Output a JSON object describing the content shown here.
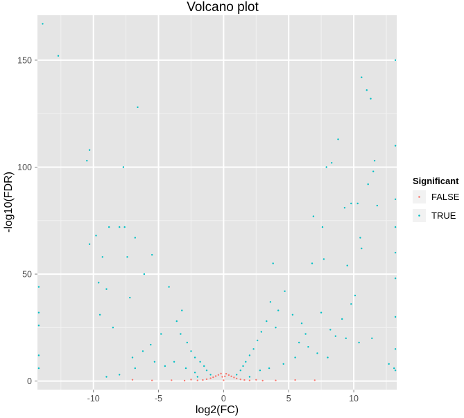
{
  "chart_data": {
    "type": "scatter",
    "title": "Volcano plot",
    "xlabel": "log2(FC)",
    "ylabel": "-log10(FDR)",
    "xlim": [
      -14.3,
      13.3
    ],
    "ylim": [
      -4,
      171
    ],
    "x_ticks": [
      -10,
      -5,
      0,
      5,
      10
    ],
    "y_ticks": [
      0,
      50,
      100,
      150
    ],
    "grid": true,
    "legend": {
      "title": "Significant",
      "placement": "right",
      "entries": [
        {
          "label": "FALSE",
          "color": "#f8766d"
        },
        {
          "label": "TRUE",
          "color": "#00bfc4"
        }
      ]
    },
    "series": [
      {
        "name": "FALSE",
        "color": "#f8766d",
        "points": [
          [
            -2.0,
            0.3
          ],
          [
            -1.6,
            0.5
          ],
          [
            -1.3,
            0.9
          ],
          [
            -1.0,
            1.3
          ],
          [
            -0.8,
            1.8
          ],
          [
            -0.6,
            2.3
          ],
          [
            -0.4,
            2.9
          ],
          [
            -0.2,
            3.5
          ],
          [
            -0.1,
            2.0
          ],
          [
            0.0,
            0.4
          ],
          [
            0.1,
            2.2
          ],
          [
            0.2,
            3.4
          ],
          [
            0.4,
            2.8
          ],
          [
            0.6,
            2.2
          ],
          [
            0.8,
            1.7
          ],
          [
            1.0,
            1.2
          ],
          [
            1.3,
            0.8
          ],
          [
            1.6,
            0.5
          ],
          [
            2.0,
            0.3
          ],
          [
            -3.0,
            0.2
          ],
          [
            -4.0,
            0.4
          ],
          [
            -5.5,
            0.3
          ],
          [
            -7.0,
            0.6
          ],
          [
            3.0,
            0.2
          ],
          [
            4.0,
            0.3
          ],
          [
            5.5,
            0.5
          ],
          [
            7.0,
            0.4
          ],
          [
            2.5,
            0.6
          ],
          [
            -2.5,
            0.7
          ]
        ]
      },
      {
        "name": "TRUE",
        "color": "#00bfc4",
        "points": [
          [
            -13.9,
            167
          ],
          [
            -12.7,
            152
          ],
          [
            -10.3,
            108
          ],
          [
            -10.5,
            103
          ],
          [
            -6.6,
            128
          ],
          [
            -7.7,
            100
          ],
          [
            -8.8,
            72
          ],
          [
            -8.0,
            72
          ],
          [
            -7.6,
            72
          ],
          [
            -10.3,
            64
          ],
          [
            -9.8,
            68
          ],
          [
            -6.8,
            67
          ],
          [
            -5.5,
            59
          ],
          [
            -7.4,
            58
          ],
          [
            -9.3,
            58
          ],
          [
            -6.1,
            50
          ],
          [
            -9.6,
            46
          ],
          [
            -9.0,
            43
          ],
          [
            -7.2,
            39
          ],
          [
            -4.2,
            44
          ],
          [
            -3.2,
            33
          ],
          [
            -3.3,
            22
          ],
          [
            -2.8,
            18
          ],
          [
            -2.5,
            14
          ],
          [
            -2.2,
            11
          ],
          [
            -1.8,
            9
          ],
          [
            -1.5,
            7
          ],
          [
            -1.3,
            5
          ],
          [
            -3.6,
            28
          ],
          [
            -4.8,
            22
          ],
          [
            -5.6,
            17
          ],
          [
            -6.2,
            14
          ],
          [
            -7.0,
            11
          ],
          [
            -8.5,
            25
          ],
          [
            -9.5,
            31
          ],
          [
            -2.9,
            6
          ],
          [
            -2.2,
            4
          ],
          [
            -3.8,
            9
          ],
          [
            -4.5,
            7
          ],
          [
            -5.3,
            9
          ],
          [
            -6.8,
            6
          ],
          [
            -8.0,
            3
          ],
          [
            -9.0,
            2
          ],
          [
            -14.2,
            44
          ],
          [
            -14.2,
            26
          ],
          [
            -14.2,
            12
          ],
          [
            -14.2,
            6
          ],
          [
            -14.2,
            32
          ],
          [
            10.6,
            142
          ],
          [
            11.0,
            136
          ],
          [
            11.3,
            132
          ],
          [
            8.8,
            113
          ],
          [
            8.3,
            102
          ],
          [
            7.9,
            100
          ],
          [
            11.5,
            98
          ],
          [
            11.6,
            103
          ],
          [
            9.8,
            83
          ],
          [
            10.3,
            83
          ],
          [
            11.1,
            92
          ],
          [
            11.8,
            82
          ],
          [
            6.9,
            77
          ],
          [
            9.3,
            81
          ],
          [
            7.6,
            72
          ],
          [
            10.5,
            67
          ],
          [
            10.6,
            62
          ],
          [
            7.7,
            57
          ],
          [
            9.5,
            54
          ],
          [
            6.8,
            55
          ],
          [
            3.8,
            55
          ],
          [
            4.7,
            42
          ],
          [
            3.6,
            37
          ],
          [
            4.2,
            33
          ],
          [
            3.3,
            28
          ],
          [
            2.9,
            23
          ],
          [
            2.6,
            19
          ],
          [
            2.3,
            15
          ],
          [
            2.0,
            12
          ],
          [
            1.7,
            9
          ],
          [
            1.5,
            7
          ],
          [
            1.3,
            5
          ],
          [
            5.3,
            31
          ],
          [
            6.0,
            27
          ],
          [
            7.5,
            32
          ],
          [
            8.2,
            24
          ],
          [
            9.1,
            29
          ],
          [
            9.8,
            36
          ],
          [
            10.1,
            40
          ],
          [
            6.5,
            16
          ],
          [
            7.2,
            13
          ],
          [
            8.0,
            11
          ],
          [
            8.6,
            21
          ],
          [
            5.5,
            11
          ],
          [
            4.6,
            8
          ],
          [
            3.5,
            6
          ],
          [
            2.8,
            5
          ],
          [
            9.4,
            20
          ],
          [
            10.4,
            18
          ],
          [
            12.7,
            8
          ],
          [
            13.1,
            6
          ],
          [
            13.2,
            150
          ],
          [
            13.2,
            110
          ],
          [
            13.2,
            85
          ],
          [
            13.2,
            72
          ],
          [
            13.2,
            60
          ],
          [
            13.2,
            48
          ],
          [
            13.2,
            30
          ],
          [
            13.2,
            15
          ],
          [
            13.2,
            5
          ],
          [
            11.4,
            20
          ],
          [
            6.3,
            22
          ],
          [
            5.8,
            18
          ],
          [
            4.0,
            25
          ],
          [
            -1.0,
            3
          ],
          [
            1.0,
            3
          ],
          [
            -2.0,
            2
          ],
          [
            2.0,
            2
          ]
        ]
      }
    ]
  }
}
